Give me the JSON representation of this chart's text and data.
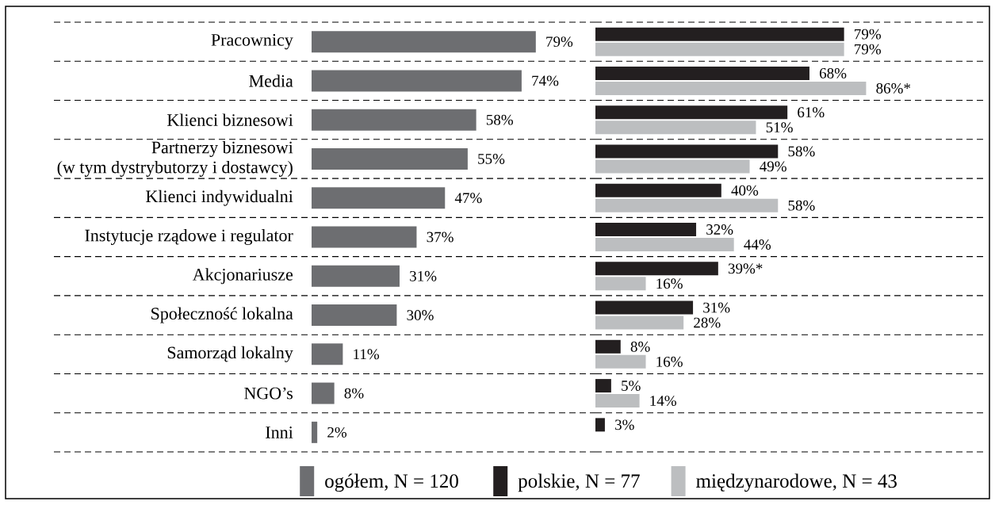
{
  "chart_data": [
    {
      "type": "bar",
      "orientation": "horizontal",
      "categories": [
        "Pracownicy",
        "Media",
        "Klienci biznesowi",
        "Partnerzy biznesowi\n(w tym dystrybutorzy i dostawcy)",
        "Klienci indywidualni",
        "Instytucje rządowe i regulator",
        "Akcjonariusze",
        "Społeczność lokalna",
        "Samorząd lokalny",
        "NGO’s",
        "Inni"
      ],
      "series": [
        {
          "name": "ogółem, N = 120",
          "color": "#6d6e71",
          "values": [
            79,
            74,
            58,
            55,
            47,
            37,
            31,
            30,
            11,
            8,
            2
          ],
          "value_labels": [
            "79%",
            "74%",
            "58%",
            "55%",
            "47%",
            "37%",
            "31%",
            "30%",
            "11%",
            "8%",
            "2%"
          ]
        }
      ],
      "grid": "y",
      "legend": "bottom",
      "tick_labels": "y"
    },
    {
      "type": "bar",
      "orientation": "horizontal",
      "categories": [
        null,
        null,
        null,
        null,
        null,
        null,
        null,
        null,
        null,
        null,
        null
      ],
      "series": [
        {
          "name": "polskie, N = 77",
          "color": "#231f20",
          "values": [
            79,
            68,
            61,
            58,
            40,
            32,
            39,
            31,
            8,
            5,
            3
          ],
          "value_labels": [
            "79%",
            "68%",
            "61%",
            "58%",
            "40%",
            "32%",
            "39%*",
            "31%",
            "8%",
            "5%",
            "3%"
          ]
        },
        {
          "name": "międzynarodowe, N = 43",
          "color": "#bcbec0",
          "values": [
            79,
            86,
            51,
            49,
            58,
            44,
            16,
            28,
            16,
            14,
            null
          ],
          "value_labels": [
            "79%",
            "86%*",
            "51%",
            "49%",
            "58%",
            "44%",
            "16%",
            "28%",
            "16%",
            "14%",
            null
          ]
        }
      ],
      "grid": "y",
      "legend": "bottom",
      "tick_labels": false
    }
  ]
}
